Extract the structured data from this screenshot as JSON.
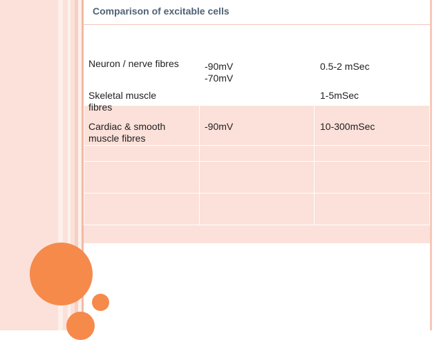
{
  "slide": {
    "title": "Comparison of excitable cells"
  },
  "table": {
    "rows": [
      {
        "cell_type": "Neuron / nerve fibres",
        "resting_potential": "-90mV\n-70mV",
        "duration": "0.5-2 mSec"
      },
      {
        "cell_type": "Skeletal muscle\nfibres",
        "resting_potential": "",
        "duration": "1-5mSec"
      },
      {
        "cell_type": "Cardiac & smooth\nmuscle fibres",
        "resting_potential": "-90mV",
        "duration": "10-300mSec"
      },
      {
        "cell_type": "",
        "resting_potential": "",
        "duration": ""
      },
      {
        "cell_type": "",
        "resting_potential": "",
        "duration": ""
      },
      {
        "cell_type": "",
        "resting_potential": "",
        "duration": ""
      }
    ]
  },
  "colors": {
    "accent_orange": "#f58a4b",
    "cell_fill": "#fbe1d9",
    "title_text": "#4f6274"
  }
}
